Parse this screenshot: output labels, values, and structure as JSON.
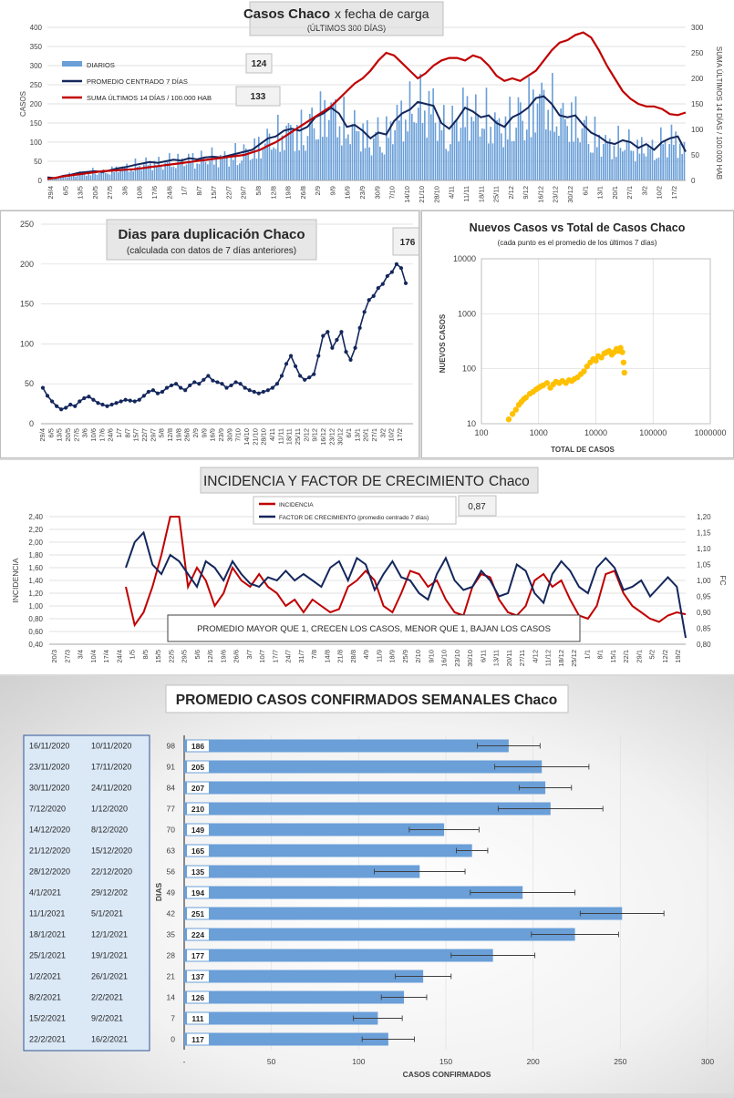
{
  "chart_data": [
    {
      "type": "bar",
      "title": "Casos Chaco",
      "title_suffix": "x fecha de carga",
      "subtitle": "(ÚLTIMOS 300 DÍAS)",
      "ylabel": "CASOS",
      "y2label": "SUMA  ÚLTIMOS 14 DÍAS / 100.000 HAB",
      "ylim": [
        0,
        400
      ],
      "yticks": [
        "0",
        "50",
        "100",
        "150",
        "200",
        "250",
        "300",
        "350",
        "400"
      ],
      "y2lim": [
        0,
        300
      ],
      "y2ticks": [
        "0",
        "50",
        "100",
        "150",
        "200",
        "250",
        "300"
      ],
      "xticks": [
        "29/4",
        "6/5",
        "13/5",
        "20/5",
        "27/5",
        "3/6",
        "10/6",
        "17/6",
        "24/6",
        "1/7",
        "8/7",
        "15/7",
        "22/7",
        "29/7",
        "5/8",
        "12/8",
        "19/8",
        "26/8",
        "2/9",
        "9/9",
        "16/9",
        "23/9",
        "30/9",
        "7/10",
        "14/10",
        "21/10",
        "28/10",
        "4/11",
        "11/11",
        "18/11",
        "25/11",
        "2/12",
        "9/12",
        "16/12",
        "23/12",
        "30/12",
        "6/1",
        "13/1",
        "20/1",
        "27/1",
        "3/2",
        "10/2",
        "17/2"
      ],
      "legend": [
        "DIARIOS",
        "PROMEDIO CENTRADO 7 DÍAS",
        "SUMA ÚLTIMOS 14 DÍAS / 100.000 HAB"
      ],
      "callouts": [
        "124",
        "133"
      ],
      "series": [
        {
          "name": "PROMEDIO CENTRADO 7 DÍAS",
          "axis": "left",
          "values": [
            8,
            6,
            12,
            15,
            20,
            22,
            24,
            22,
            27,
            32,
            35,
            40,
            44,
            48,
            46,
            50,
            54,
            52,
            58,
            55,
            60,
            62,
            60,
            65,
            70,
            75,
            80,
            95,
            110,
            115,
            130,
            135,
            130,
            140,
            165,
            175,
            190,
            175,
            140,
            145,
            130,
            110,
            125,
            120,
            155,
            175,
            185,
            205,
            200,
            195,
            150,
            135,
            160,
            190,
            180,
            165,
            170,
            150,
            140,
            165,
            175,
            190,
            215,
            220,
            200,
            170,
            165,
            170,
            145,
            125,
            115,
            100,
            95,
            105,
            100,
            85,
            95,
            80,
            100,
            110,
            115,
            75
          ]
        },
        {
          "name": "SUMA ÚLTIMOS 14 DÍAS / 100.000 HAB",
          "axis": "right",
          "values": [
            3,
            5,
            8,
            10,
            12,
            14,
            16,
            18,
            19,
            20,
            21,
            22,
            24,
            26,
            28,
            30,
            32,
            34,
            36,
            38,
            40,
            42,
            44,
            46,
            48,
            50,
            55,
            60,
            68,
            75,
            85,
            95,
            105,
            115,
            125,
            135,
            145,
            160,
            175,
            190,
            200,
            215,
            235,
            250,
            245,
            230,
            215,
            200,
            210,
            225,
            235,
            240,
            240,
            235,
            245,
            240,
            225,
            205,
            195,
            200,
            195,
            205,
            215,
            235,
            255,
            270,
            275,
            285,
            290,
            280,
            255,
            225,
            200,
            175,
            160,
            150,
            145,
            145,
            140,
            130,
            128,
            133
          ]
        }
      ]
    },
    {
      "type": "line",
      "title": "Dias para duplicación Chaco",
      "subtitle": "(calculada con datos de 7 días anteriores)",
      "ylim": [
        0,
        250
      ],
      "yticks": [
        "0",
        "50",
        "100",
        "150",
        "200",
        "250"
      ],
      "xticks": [
        "29/4",
        "6/5",
        "13/5",
        "20/5",
        "27/5",
        "3/6",
        "10/6",
        "17/6",
        "24/6",
        "1/7",
        "8/7",
        "15/7",
        "22/7",
        "29/7",
        "5/8",
        "12/8",
        "19/8",
        "26/8",
        "2/9",
        "9/9",
        "16/9",
        "23/9",
        "30/9",
        "7/10",
        "14/10",
        "21/10",
        "28/10",
        "4/11",
        "11/11",
        "18/11",
        "25/11",
        "2/12",
        "9/12",
        "16/12",
        "23/12",
        "30/12",
        "6/1",
        "13/1",
        "20/1",
        "27/1",
        "3/2",
        "10/2",
        "17/2"
      ],
      "callout": "176",
      "series": [
        {
          "name": "",
          "values": [
            45,
            35,
            28,
            22,
            18,
            20,
            24,
            22,
            28,
            32,
            34,
            30,
            26,
            24,
            22,
            24,
            26,
            28,
            30,
            29,
            28,
            30,
            35,
            40,
            42,
            38,
            40,
            45,
            48,
            50,
            45,
            42,
            48,
            52,
            50,
            55,
            60,
            54,
            52,
            50,
            45,
            48,
            52,
            50,
            45,
            42,
            40,
            38,
            40,
            42,
            45,
            50,
            60,
            75,
            85,
            72,
            60,
            55,
            58,
            62,
            85,
            110,
            115,
            95,
            105,
            115,
            90,
            80,
            95,
            120,
            140,
            155,
            160,
            170,
            175,
            185,
            190,
            200,
            195,
            176
          ]
        }
      ]
    },
    {
      "type": "scatter",
      "title": "Nuevos Casos vs Total de Casos Chaco",
      "subtitle": "(cada punto es el promedio de los últimos 7 días)",
      "xlabel": "TOTAL DE CASOS",
      "ylabel": "NUEVOS  CASOS",
      "xscale": "log",
      "yscale": "log",
      "xlim": [
        100,
        1000000
      ],
      "ylim": [
        10,
        10000
      ],
      "xticks": [
        "100",
        "1000",
        "10000",
        "100000",
        "1000000"
      ],
      "yticks": [
        "10",
        "100",
        "1000",
        "10000"
      ],
      "x": [
        300,
        350,
        400,
        450,
        500,
        550,
        600,
        700,
        800,
        900,
        1000,
        1100,
        1200,
        1400,
        1600,
        1800,
        2000,
        2300,
        2600,
        3000,
        3400,
        3800,
        4200,
        4800,
        5500,
        6200,
        7000,
        8000,
        9000,
        10000,
        11000,
        12500,
        14000,
        15500,
        17000,
        19000,
        21000,
        23000,
        25000,
        27000,
        29000,
        30500,
        31500
      ],
      "y": [
        12,
        15,
        18,
        22,
        25,
        28,
        30,
        35,
        38,
        42,
        45,
        48,
        50,
        55,
        45,
        52,
        58,
        55,
        60,
        55,
        62,
        60,
        65,
        70,
        80,
        90,
        110,
        130,
        150,
        140,
        170,
        160,
        190,
        200,
        210,
        180,
        200,
        230,
        210,
        240,
        200,
        130,
        85
      ]
    },
    {
      "type": "line",
      "title": "INCIDENCIA Y FACTOR DE CRECIMIENTO",
      "title_suffix": "Chaco",
      "ylabel": "INCIDENCIA",
      "y2label": "FC",
      "ylim": [
        0.4,
        2.4
      ],
      "yticks": [
        "0,40",
        "0,60",
        "0,80",
        "1,00",
        "1,20",
        "1,40",
        "1,60",
        "1,80",
        "2,00",
        "2,20",
        "2,40"
      ],
      "y2lim": [
        0.8,
        1.2
      ],
      "y2ticks": [
        "0,80",
        "0,85",
        "0,90",
        "0,95",
        "1,00",
        "1,05",
        "1,10",
        "1,15",
        "1,20"
      ],
      "xticks": [
        "20/3",
        "27/3",
        "3/4",
        "10/4",
        "17/4",
        "24/4",
        "1/5",
        "8/5",
        "15/5",
        "22/5",
        "29/5",
        "5/6",
        "12/6",
        "19/6",
        "26/6",
        "3/7",
        "10/7",
        "17/7",
        "24/7",
        "31/7",
        "7/8",
        "14/8",
        "21/8",
        "28/8",
        "4/9",
        "11/9",
        "18/9",
        "25/9",
        "2/10",
        "9/10",
        "16/10",
        "23/10",
        "30/10",
        "6/11",
        "13/11",
        "20/11",
        "27/11",
        "4/12",
        "11/12",
        "18/12",
        "25/12",
        "1/1",
        "8/1",
        "15/1",
        "22/1",
        "29/1",
        "5/2",
        "12/2",
        "19/2"
      ],
      "legend": [
        "INCIDENCIA",
        "FACTOR DE CRECIMIENTO (promedio centrado 7 días)"
      ],
      "callout": "0,87",
      "annotation": "PROMEDIO MAYOR QUE 1, CRECEN LOS CASOS, MENOR QUE 1, BAJAN LOS CASOS",
      "series": [
        {
          "name": "INCIDENCIA",
          "axis": "left",
          "values": [
            1.3,
            0.7,
            0.9,
            1.3,
            1.8,
            2.4,
            2.4,
            1.3,
            1.6,
            1.4,
            1.0,
            1.2,
            1.6,
            1.4,
            1.3,
            1.5,
            1.3,
            1.2,
            1.0,
            1.1,
            0.9,
            1.1,
            1.0,
            0.9,
            0.95,
            1.3,
            1.4,
            1.55,
            1.4,
            1.0,
            0.9,
            1.2,
            1.55,
            1.5,
            1.3,
            1.4,
            1.1,
            0.9,
            0.85,
            1.3,
            1.5,
            1.45,
            1.1,
            0.9,
            0.85,
            1.0,
            1.4,
            1.5,
            1.3,
            1.4,
            1.1,
            0.85,
            0.8,
            1.0,
            1.5,
            1.55,
            1.2,
            1.0,
            0.9,
            0.8,
            0.75,
            0.85,
            0.9,
            0.87
          ]
        },
        {
          "name": "FACTOR DE CRECIMIENTO (promedio centrado 7 días)",
          "axis": "right",
          "values": [
            1.04,
            1.12,
            1.15,
            1.05,
            1.02,
            1.08,
            1.06,
            1.02,
            0.98,
            1.06,
            1.04,
            1.0,
            1.06,
            1.02,
            0.99,
            0.98,
            1.01,
            1.0,
            1.03,
            1.0,
            1.02,
            1.0,
            0.98,
            1.04,
            1.06,
            1.0,
            1.07,
            1.05,
            0.97,
            1.02,
            1.06,
            1.01,
            1.0,
            0.96,
            0.94,
            1.02,
            1.07,
            1.0,
            0.97,
            0.98,
            1.03,
            1.0,
            0.95,
            0.96,
            1.05,
            1.03,
            0.96,
            0.93,
            1.02,
            1.06,
            1.03,
            0.98,
            0.96,
            1.04,
            1.07,
            1.04,
            0.97,
            0.98,
            1.0,
            0.95,
            0.98,
            1.01,
            0.98,
            0.82
          ]
        }
      ]
    },
    {
      "type": "bar",
      "orientation": "horizontal",
      "title": "PROMEDIO CASOS CONFIRMADOS SEMANALES Chaco",
      "xlabel": "CASOS CONFIRMADOS",
      "ylabel": "DIAS",
      "xlim": [
        0,
        300
      ],
      "xticks": [
        "-",
        "50",
        "100",
        "150",
        "200",
        "250",
        "300"
      ],
      "rows": [
        {
          "date_end": "16/11/2020",
          "date_start": "10/11/2020",
          "dias": "98",
          "value": 186,
          "label": "186",
          "err": 18
        },
        {
          "date_end": "23/11/2020",
          "date_start": "17/11/2020",
          "dias": "91",
          "value": 205,
          "label": "205",
          "err": 27
        },
        {
          "date_end": "30/11/2020",
          "date_start": "24/11/2020",
          "dias": "84",
          "value": 207,
          "label": "207",
          "err": 15
        },
        {
          "date_end": "7/12/2020",
          "date_start": "1/12/2020",
          "dias": "77",
          "value": 210,
          "label": "210",
          "err": 30
        },
        {
          "date_end": "14/12/2020",
          "date_start": "8/12/2020",
          "dias": "70",
          "value": 149,
          "label": "149",
          "err": 20
        },
        {
          "date_end": "21/12/2020",
          "date_start": "15/12/2020",
          "dias": "63",
          "value": 165,
          "label": "165",
          "err": 9
        },
        {
          "date_end": "28/12/2020",
          "date_start": "22/12/2020",
          "dias": "56",
          "value": 135,
          "label": "135",
          "err": 26
        },
        {
          "date_end": "4/1/2021",
          "date_start": "29/12/202",
          "dias": "49",
          "value": 194,
          "label": "194",
          "err": 30
        },
        {
          "date_end": "11/1/2021",
          "date_start": "5/1/2021",
          "dias": "42",
          "value": 251,
          "label": "251",
          "err": 24
        },
        {
          "date_end": "18/1/2021",
          "date_start": "12/1/2021",
          "dias": "35",
          "value": 224,
          "label": "224",
          "err": 25
        },
        {
          "date_end": "25/1/2021",
          "date_start": "19/1/2021",
          "dias": "28",
          "value": 177,
          "label": "177",
          "err": 24
        },
        {
          "date_end": "1/2/2021",
          "date_start": "26/1/2021",
          "dias": "21",
          "value": 137,
          "label": "137",
          "err": 16
        },
        {
          "date_end": "8/2/2021",
          "date_start": "2/2/2021",
          "dias": "14",
          "value": 126,
          "label": "126",
          "err": 13
        },
        {
          "date_end": "15/2/2021",
          "date_start": "9/2/2021",
          "dias": "7",
          "value": 111,
          "label": "111",
          "err": 14
        },
        {
          "date_end": "22/2/2021",
          "date_start": "16/2/2021",
          "dias": "0",
          "value": 117,
          "label": "117",
          "err": 15
        }
      ]
    }
  ],
  "colors": {
    "bar_blue": "#6a9fd8",
    "avg_navy": "#14275c",
    "sum_red": "#c00000",
    "scatter_gold": "#ffc000",
    "grid": "#d9d9d9",
    "weekly_bar": "#6a9fd8",
    "date_box_bg": "#dbe8f6"
  }
}
